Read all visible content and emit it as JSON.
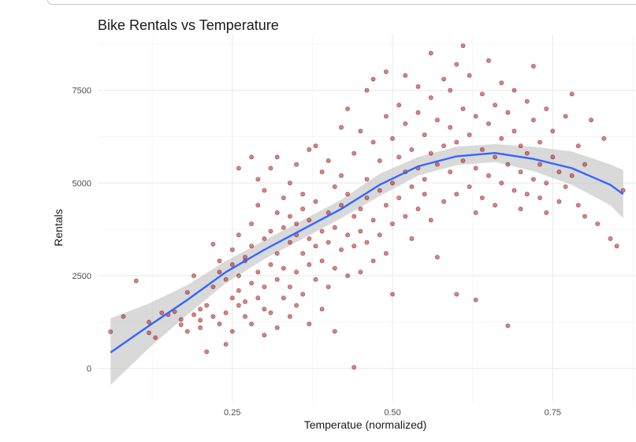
{
  "chart_data": {
    "type": "scatter",
    "title": "Bike Rentals vs Temperature",
    "xlabel": "Temperatue (normalized)",
    "ylabel": "Rentals",
    "xlim": [
      0.04,
      0.88
    ],
    "ylim": [
      -900,
      9000
    ],
    "x_ticks": [
      0.25,
      0.5,
      0.75
    ],
    "x_tick_labels": [
      "0.25",
      "0.50",
      "0.75"
    ],
    "y_ticks": [
      0,
      2500,
      5000,
      7500
    ],
    "y_tick_labels": [
      "0",
      "2500",
      "5000",
      "7500"
    ],
    "grid": true,
    "point_color": "#b22222",
    "smooth_color": "#3366ff",
    "band_color": "#bfbfbf",
    "points": [
      [
        0.06,
        990
      ],
      [
        0.08,
        1400
      ],
      [
        0.1,
        2360
      ],
      [
        0.12,
        1250
      ],
      [
        0.12,
        960
      ],
      [
        0.13,
        830
      ],
      [
        0.14,
        1500
      ],
      [
        0.15,
        1450
      ],
      [
        0.16,
        1530
      ],
      [
        0.17,
        1320
      ],
      [
        0.17,
        1180
      ],
      [
        0.18,
        1000
      ],
      [
        0.18,
        2050
      ],
      [
        0.19,
        2500
      ],
      [
        0.19,
        1450
      ],
      [
        0.2,
        1600
      ],
      [
        0.2,
        1300
      ],
      [
        0.2,
        1100
      ],
      [
        0.21,
        450
      ],
      [
        0.21,
        1700
      ],
      [
        0.22,
        1400
      ],
      [
        0.22,
        2200
      ],
      [
        0.22,
        3350
      ],
      [
        0.23,
        2900
      ],
      [
        0.23,
        1200
      ],
      [
        0.23,
        2600
      ],
      [
        0.24,
        2400
      ],
      [
        0.24,
        1500
      ],
      [
        0.24,
        650
      ],
      [
        0.25,
        2800
      ],
      [
        0.25,
        1900
      ],
      [
        0.25,
        3200
      ],
      [
        0.25,
        1000
      ],
      [
        0.26,
        2100
      ],
      [
        0.26,
        3600
      ],
      [
        0.26,
        5400
      ],
      [
        0.26,
        1700
      ],
      [
        0.26,
        2500
      ],
      [
        0.27,
        2900
      ],
      [
        0.27,
        1400
      ],
      [
        0.27,
        3000
      ],
      [
        0.27,
        1800
      ],
      [
        0.28,
        3900
      ],
      [
        0.28,
        5700
      ],
      [
        0.28,
        2300
      ],
      [
        0.28,
        1200
      ],
      [
        0.28,
        3300
      ],
      [
        0.29,
        2600
      ],
      [
        0.29,
        4400
      ],
      [
        0.29,
        1900
      ],
      [
        0.29,
        5100
      ],
      [
        0.3,
        3500
      ],
      [
        0.3,
        2200
      ],
      [
        0.3,
        1600
      ],
      [
        0.3,
        4800
      ],
      [
        0.3,
        900
      ],
      [
        0.31,
        3700
      ],
      [
        0.31,
        2800
      ],
      [
        0.31,
        5400
      ],
      [
        0.31,
        1500
      ],
      [
        0.32,
        4200
      ],
      [
        0.32,
        3100
      ],
      [
        0.32,
        2400
      ],
      [
        0.32,
        5700
      ],
      [
        0.32,
        1100
      ],
      [
        0.33,
        3800
      ],
      [
        0.33,
        2700
      ],
      [
        0.33,
        4600
      ],
      [
        0.33,
        1900
      ],
      [
        0.34,
        3400
      ],
      [
        0.34,
        5000
      ],
      [
        0.34,
        2200
      ],
      [
        0.34,
        4100
      ],
      [
        0.34,
        1400
      ],
      [
        0.35,
        3600
      ],
      [
        0.35,
        2600
      ],
      [
        0.35,
        5500
      ],
      [
        0.35,
        3900
      ],
      [
        0.35,
        1700
      ],
      [
        0.36,
        4300
      ],
      [
        0.36,
        3100
      ],
      [
        0.36,
        2000
      ],
      [
        0.36,
        4700
      ],
      [
        0.37,
        3500
      ],
      [
        0.37,
        5900
      ],
      [
        0.37,
        2800
      ],
      [
        0.37,
        4000
      ],
      [
        0.37,
        1200
      ],
      [
        0.38,
        3300
      ],
      [
        0.38,
        4500
      ],
      [
        0.38,
        2400
      ],
      [
        0.38,
        6000
      ],
      [
        0.39,
        3700
      ],
      [
        0.39,
        5300
      ],
      [
        0.39,
        2900
      ],
      [
        0.39,
        1600
      ],
      [
        0.4,
        4200
      ],
      [
        0.4,
        3400
      ],
      [
        0.4,
        5600
      ],
      [
        0.4,
        2200
      ],
      [
        0.41,
        3800
      ],
      [
        0.41,
        4900
      ],
      [
        0.41,
        2700
      ],
      [
        0.41,
        1000
      ],
      [
        0.42,
        4400
      ],
      [
        0.42,
        3200
      ],
      [
        0.42,
        5200
      ],
      [
        0.42,
        6500
      ],
      [
        0.43,
        3600
      ],
      [
        0.43,
        4700
      ],
      [
        0.43,
        2500
      ],
      [
        0.43,
        7000
      ],
      [
        0.44,
        4100
      ],
      [
        0.44,
        3300
      ],
      [
        0.44,
        5800
      ],
      [
        0.44,
        30
      ],
      [
        0.45,
        4300
      ],
      [
        0.45,
        3700
      ],
      [
        0.45,
        6400
      ],
      [
        0.45,
        2600
      ],
      [
        0.46,
        4600
      ],
      [
        0.46,
        3400
      ],
      [
        0.46,
        7500
      ],
      [
        0.46,
        5100
      ],
      [
        0.47,
        4000
      ],
      [
        0.47,
        6100
      ],
      [
        0.47,
        2900
      ],
      [
        0.47,
        7800
      ],
      [
        0.48,
        4800
      ],
      [
        0.48,
        3600
      ],
      [
        0.48,
        5600
      ],
      [
        0.49,
        4400
      ],
      [
        0.49,
        6800
      ],
      [
        0.49,
        3100
      ],
      [
        0.49,
        8000
      ],
      [
        0.5,
        5000
      ],
      [
        0.5,
        3900
      ],
      [
        0.5,
        6200
      ],
      [
        0.5,
        2000
      ],
      [
        0.51,
        4600
      ],
      [
        0.51,
        5700
      ],
      [
        0.51,
        7100
      ],
      [
        0.52,
        5300
      ],
      [
        0.52,
        4100
      ],
      [
        0.52,
        6600
      ],
      [
        0.52,
        7900
      ],
      [
        0.53,
        4900
      ],
      [
        0.53,
        5900
      ],
      [
        0.53,
        3500
      ],
      [
        0.54,
        5400
      ],
      [
        0.54,
        6900
      ],
      [
        0.54,
        4300
      ],
      [
        0.54,
        7600
      ],
      [
        0.55,
        5100
      ],
      [
        0.55,
        6300
      ],
      [
        0.55,
        4700
      ],
      [
        0.56,
        5800
      ],
      [
        0.56,
        7300
      ],
      [
        0.56,
        4000
      ],
      [
        0.56,
        8500
      ],
      [
        0.57,
        5500
      ],
      [
        0.57,
        6700
      ],
      [
        0.57,
        3000
      ],
      [
        0.58,
        6000
      ],
      [
        0.58,
        7800
      ],
      [
        0.58,
        4500
      ],
      [
        0.59,
        5300
      ],
      [
        0.59,
        6500
      ],
      [
        0.59,
        7500
      ],
      [
        0.6,
        4700
      ],
      [
        0.6,
        6100
      ],
      [
        0.6,
        8200
      ],
      [
        0.6,
        2000
      ],
      [
        0.61,
        5600
      ],
      [
        0.61,
        7000
      ],
      [
        0.61,
        8700
      ],
      [
        0.62,
        4900
      ],
      [
        0.62,
        6300
      ],
      [
        0.62,
        7900
      ],
      [
        0.63,
        5400
      ],
      [
        0.63,
        6800
      ],
      [
        0.63,
        4200
      ],
      [
        0.63,
        1850
      ],
      [
        0.64,
        5900
      ],
      [
        0.64,
        7400
      ],
      [
        0.64,
        4600
      ],
      [
        0.65,
        5200
      ],
      [
        0.65,
        6600
      ],
      [
        0.65,
        8300
      ],
      [
        0.66,
        5700
      ],
      [
        0.66,
        7100
      ],
      [
        0.66,
        4400
      ],
      [
        0.67,
        5000
      ],
      [
        0.67,
        6200
      ],
      [
        0.67,
        7700
      ],
      [
        0.68,
        5500
      ],
      [
        0.68,
        6900
      ],
      [
        0.68,
        1150
      ],
      [
        0.69,
        4800
      ],
      [
        0.69,
        6400
      ],
      [
        0.69,
        7500
      ],
      [
        0.7,
        5300
      ],
      [
        0.7,
        6000
      ],
      [
        0.7,
        4300
      ],
      [
        0.71,
        5800
      ],
      [
        0.71,
        7200
      ],
      [
        0.71,
        4700
      ],
      [
        0.72,
        5100
      ],
      [
        0.72,
        6700
      ],
      [
        0.72,
        8150
      ],
      [
        0.73,
        4600
      ],
      [
        0.73,
        6100
      ],
      [
        0.73,
        5500
      ],
      [
        0.74,
        5000
      ],
      [
        0.74,
        7000
      ],
      [
        0.74,
        4200
      ],
      [
        0.75,
        5700
      ],
      [
        0.75,
        6400
      ],
      [
        0.76,
        4500
      ],
      [
        0.76,
        5300
      ],
      [
        0.77,
        6800
      ],
      [
        0.77,
        4900
      ],
      [
        0.78,
        5200
      ],
      [
        0.78,
        7400
      ],
      [
        0.79,
        4400
      ],
      [
        0.79,
        6000
      ],
      [
        0.8,
        5500
      ],
      [
        0.8,
        4100
      ],
      [
        0.81,
        6700
      ],
      [
        0.82,
        3900
      ],
      [
        0.83,
        6200
      ],
      [
        0.84,
        3500
      ],
      [
        0.85,
        3300
      ],
      [
        0.86,
        4800
      ]
    ],
    "smooth_line": [
      [
        0.06,
        430
      ],
      [
        0.12,
        1150
      ],
      [
        0.18,
        1850
      ],
      [
        0.24,
        2600
      ],
      [
        0.3,
        3200
      ],
      [
        0.36,
        3750
      ],
      [
        0.42,
        4300
      ],
      [
        0.48,
        4950
      ],
      [
        0.54,
        5450
      ],
      [
        0.6,
        5720
      ],
      [
        0.66,
        5810
      ],
      [
        0.72,
        5650
      ],
      [
        0.78,
        5400
      ],
      [
        0.84,
        4950
      ],
      [
        0.86,
        4700
      ]
    ],
    "band_upper": [
      [
        0.06,
        1350
      ],
      [
        0.12,
        1750
      ],
      [
        0.18,
        2250
      ],
      [
        0.24,
        2900
      ],
      [
        0.3,
        3450
      ],
      [
        0.36,
        4000
      ],
      [
        0.42,
        4550
      ],
      [
        0.48,
        5250
      ],
      [
        0.54,
        5700
      ],
      [
        0.6,
        5980
      ],
      [
        0.66,
        6050
      ],
      [
        0.72,
        5980
      ],
      [
        0.78,
        5850
      ],
      [
        0.84,
        5500
      ],
      [
        0.86,
        5350
      ]
    ],
    "band_lower": [
      [
        0.06,
        -450
      ],
      [
        0.12,
        550
      ],
      [
        0.18,
        1450
      ],
      [
        0.24,
        2300
      ],
      [
        0.3,
        2950
      ],
      [
        0.36,
        3500
      ],
      [
        0.42,
        4050
      ],
      [
        0.48,
        4650
      ],
      [
        0.54,
        5200
      ],
      [
        0.6,
        5480
      ],
      [
        0.66,
        5570
      ],
      [
        0.72,
        5320
      ],
      [
        0.78,
        4950
      ],
      [
        0.84,
        4400
      ],
      [
        0.86,
        4050
      ]
    ]
  }
}
